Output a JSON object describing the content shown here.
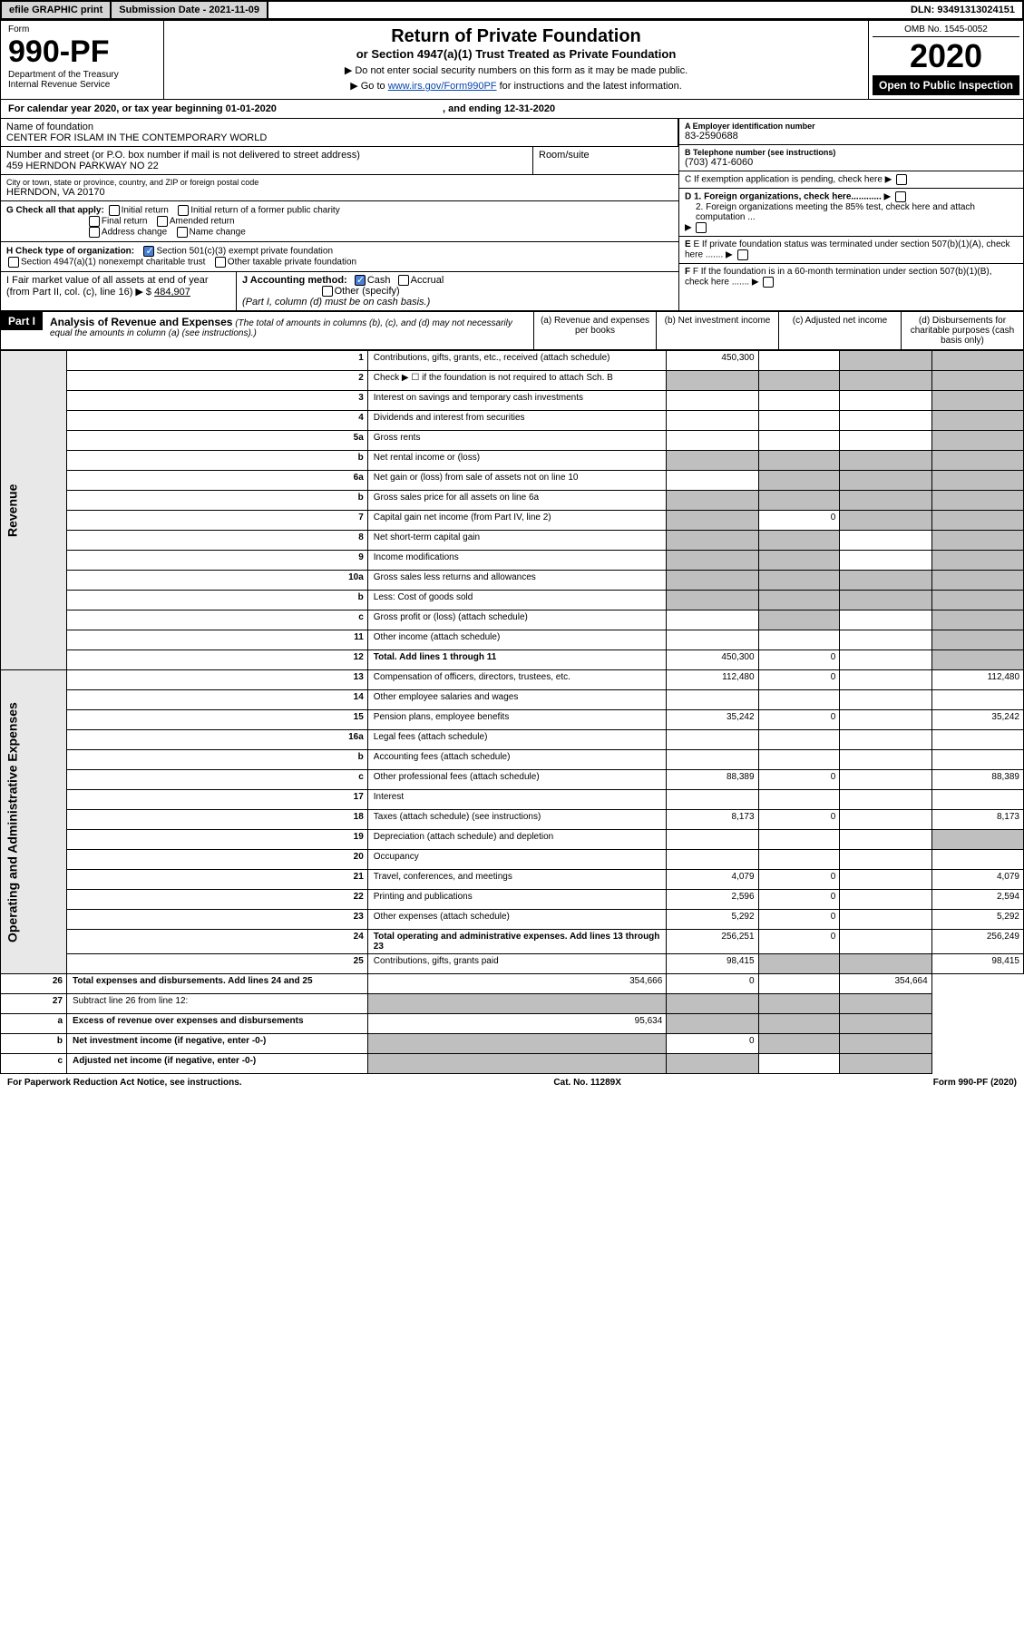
{
  "topbar": {
    "efile": "efile GRAPHIC print",
    "submission": "Submission Date - 2021-11-09",
    "dln": "DLN: 93491313024151"
  },
  "header": {
    "form_label": "Form",
    "form_number": "990-PF",
    "dept1": "Department of the Treasury",
    "dept2": "Internal Revenue Service",
    "title": "Return of Private Foundation",
    "subtitle": "or Section 4947(a)(1) Trust Treated as Private Foundation",
    "note1": "▶ Do not enter social security numbers on this form as it may be made public.",
    "note2_pre": "▶ Go to ",
    "note2_link": "www.irs.gov/Form990PF",
    "note2_post": " for instructions and the latest information.",
    "omb": "OMB No. 1545-0052",
    "year": "2020",
    "open": "Open to Public Inspection"
  },
  "calendar": {
    "text_pre": "For calendar year 2020, or tax year beginning ",
    "begin": "01-01-2020",
    "text_mid": " , and ending ",
    "end": "12-31-2020"
  },
  "foundation": {
    "name_lbl": "Name of foundation",
    "name": "CENTER FOR ISLAM IN THE CONTEMPORARY WORLD",
    "addr_lbl": "Number and street (or P.O. box number if mail is not delivered to street address)",
    "addr": "459 HERNDON PARKWAY NO 22",
    "room_lbl": "Room/suite",
    "city_lbl": "City or town, state or province, country, and ZIP or foreign postal code",
    "city": "HERNDON, VA  20170",
    "ein_lbl": "A Employer identification number",
    "ein": "83-2590688",
    "phone_lbl": "B Telephone number (see instructions)",
    "phone": "(703) 471-6060",
    "c": "C If exemption application is pending, check here",
    "d1": "D 1. Foreign organizations, check here............",
    "d2": "2. Foreign organizations meeting the 85% test, check here and attach computation ...",
    "e": "E If private foundation status was terminated under section 507(b)(1)(A), check here .......",
    "f": "F If the foundation is in a 60-month termination under section 507(b)(1)(B), check here .......",
    "g_lbl": "G Check all that apply:",
    "g_opts": [
      "Initial return",
      "Initial return of a former public charity",
      "Final return",
      "Amended return",
      "Address change",
      "Name change"
    ],
    "h_lbl": "H Check type of organization:",
    "h1": "Section 501(c)(3) exempt private foundation",
    "h2": "Section 4947(a)(1) nonexempt charitable trust",
    "h3": "Other taxable private foundation",
    "i_lbl": "I Fair market value of all assets at end of year (from Part II, col. (c), line 16) ▶ $",
    "i_val": "484,907",
    "j_lbl": "J Accounting method:",
    "j_cash": "Cash",
    "j_accrual": "Accrual",
    "j_other": "Other (specify)",
    "j_note": "(Part I, column (d) must be on cash basis.)"
  },
  "part1": {
    "label": "Part I",
    "title": "Analysis of Revenue and Expenses",
    "title_note": "(The total of amounts in columns (b), (c), and (d) may not necessarily equal the amounts in column (a) (see instructions).)",
    "col_a": "(a) Revenue and expenses per books",
    "col_b": "(b) Net investment income",
    "col_c": "(c) Adjusted net income",
    "col_d": "(d) Disbursements for charitable purposes (cash basis only)"
  },
  "sections": {
    "revenue": "Revenue",
    "opex": "Operating and Administrative Expenses"
  },
  "rows": [
    {
      "n": "1",
      "d": "Contributions, gifts, grants, etc., received (attach schedule)",
      "a": "450,300",
      "b": "",
      "c": "g",
      "dd": "g"
    },
    {
      "n": "2",
      "d": "Check ▶ ☐ if the foundation is not required to attach Sch. B",
      "a": "g",
      "b": "g",
      "c": "g",
      "dd": "g"
    },
    {
      "n": "3",
      "d": "Interest on savings and temporary cash investments",
      "a": "",
      "b": "",
      "c": "",
      "dd": "g"
    },
    {
      "n": "4",
      "d": "Dividends and interest from securities",
      "a": "",
      "b": "",
      "c": "",
      "dd": "g"
    },
    {
      "n": "5a",
      "d": "Gross rents",
      "a": "",
      "b": "",
      "c": "",
      "dd": "g"
    },
    {
      "n": "b",
      "d": "Net rental income or (loss)",
      "a": "g",
      "b": "g",
      "c": "g",
      "dd": "g"
    },
    {
      "n": "6a",
      "d": "Net gain or (loss) from sale of assets not on line 10",
      "a": "",
      "b": "g",
      "c": "g",
      "dd": "g"
    },
    {
      "n": "b",
      "d": "Gross sales price for all assets on line 6a",
      "a": "g",
      "b": "g",
      "c": "g",
      "dd": "g"
    },
    {
      "n": "7",
      "d": "Capital gain net income (from Part IV, line 2)",
      "a": "g",
      "b": "0",
      "c": "g",
      "dd": "g"
    },
    {
      "n": "8",
      "d": "Net short-term capital gain",
      "a": "g",
      "b": "g",
      "c": "",
      "dd": "g"
    },
    {
      "n": "9",
      "d": "Income modifications",
      "a": "g",
      "b": "g",
      "c": "",
      "dd": "g"
    },
    {
      "n": "10a",
      "d": "Gross sales less returns and allowances",
      "a": "g",
      "b": "g",
      "c": "g",
      "dd": "g"
    },
    {
      "n": "b",
      "d": "Less: Cost of goods sold",
      "a": "g",
      "b": "g",
      "c": "g",
      "dd": "g"
    },
    {
      "n": "c",
      "d": "Gross profit or (loss) (attach schedule)",
      "a": "",
      "b": "g",
      "c": "",
      "dd": "g"
    },
    {
      "n": "11",
      "d": "Other income (attach schedule)",
      "a": "",
      "b": "",
      "c": "",
      "dd": "g"
    },
    {
      "n": "12",
      "d": "Total. Add lines 1 through 11",
      "a": "450,300",
      "b": "0",
      "c": "",
      "dd": "g",
      "bold": true
    },
    {
      "n": "13",
      "d": "Compensation of officers, directors, trustees, etc.",
      "a": "112,480",
      "b": "0",
      "c": "",
      "dd": "112,480"
    },
    {
      "n": "14",
      "d": "Other employee salaries and wages",
      "a": "",
      "b": "",
      "c": "",
      "dd": ""
    },
    {
      "n": "15",
      "d": "Pension plans, employee benefits",
      "a": "35,242",
      "b": "0",
      "c": "",
      "dd": "35,242"
    },
    {
      "n": "16a",
      "d": "Legal fees (attach schedule)",
      "a": "",
      "b": "",
      "c": "",
      "dd": ""
    },
    {
      "n": "b",
      "d": "Accounting fees (attach schedule)",
      "a": "",
      "b": "",
      "c": "",
      "dd": ""
    },
    {
      "n": "c",
      "d": "Other professional fees (attach schedule)",
      "a": "88,389",
      "b": "0",
      "c": "",
      "dd": "88,389"
    },
    {
      "n": "17",
      "d": "Interest",
      "a": "",
      "b": "",
      "c": "",
      "dd": ""
    },
    {
      "n": "18",
      "d": "Taxes (attach schedule) (see instructions)",
      "a": "8,173",
      "b": "0",
      "c": "",
      "dd": "8,173"
    },
    {
      "n": "19",
      "d": "Depreciation (attach schedule) and depletion",
      "a": "",
      "b": "",
      "c": "",
      "dd": "g"
    },
    {
      "n": "20",
      "d": "Occupancy",
      "a": "",
      "b": "",
      "c": "",
      "dd": ""
    },
    {
      "n": "21",
      "d": "Travel, conferences, and meetings",
      "a": "4,079",
      "b": "0",
      "c": "",
      "dd": "4,079"
    },
    {
      "n": "22",
      "d": "Printing and publications",
      "a": "2,596",
      "b": "0",
      "c": "",
      "dd": "2,594"
    },
    {
      "n": "23",
      "d": "Other expenses (attach schedule)",
      "a": "5,292",
      "b": "0",
      "c": "",
      "dd": "5,292"
    },
    {
      "n": "24",
      "d": "Total operating and administrative expenses. Add lines 13 through 23",
      "a": "256,251",
      "b": "0",
      "c": "",
      "dd": "256,249",
      "bold": true
    },
    {
      "n": "25",
      "d": "Contributions, gifts, grants paid",
      "a": "98,415",
      "b": "g",
      "c": "g",
      "dd": "98,415"
    },
    {
      "n": "26",
      "d": "Total expenses and disbursements. Add lines 24 and 25",
      "a": "354,666",
      "b": "0",
      "c": "",
      "dd": "354,664",
      "bold": true
    },
    {
      "n": "27",
      "d": "Subtract line 26 from line 12:",
      "a": "g",
      "b": "g",
      "c": "g",
      "dd": "g"
    },
    {
      "n": "a",
      "d": "Excess of revenue over expenses and disbursements",
      "a": "95,634",
      "b": "g",
      "c": "g",
      "dd": "g",
      "bold": true
    },
    {
      "n": "b",
      "d": "Net investment income (if negative, enter -0-)",
      "a": "g",
      "b": "0",
      "c": "g",
      "dd": "g",
      "bold": true
    },
    {
      "n": "c",
      "d": "Adjusted net income (if negative, enter -0-)",
      "a": "g",
      "b": "g",
      "c": "",
      "dd": "g",
      "bold": true
    }
  ],
  "footer": {
    "left": "For Paperwork Reduction Act Notice, see instructions.",
    "mid": "Cat. No. 11289X",
    "right": "Form 990-PF (2020)"
  }
}
